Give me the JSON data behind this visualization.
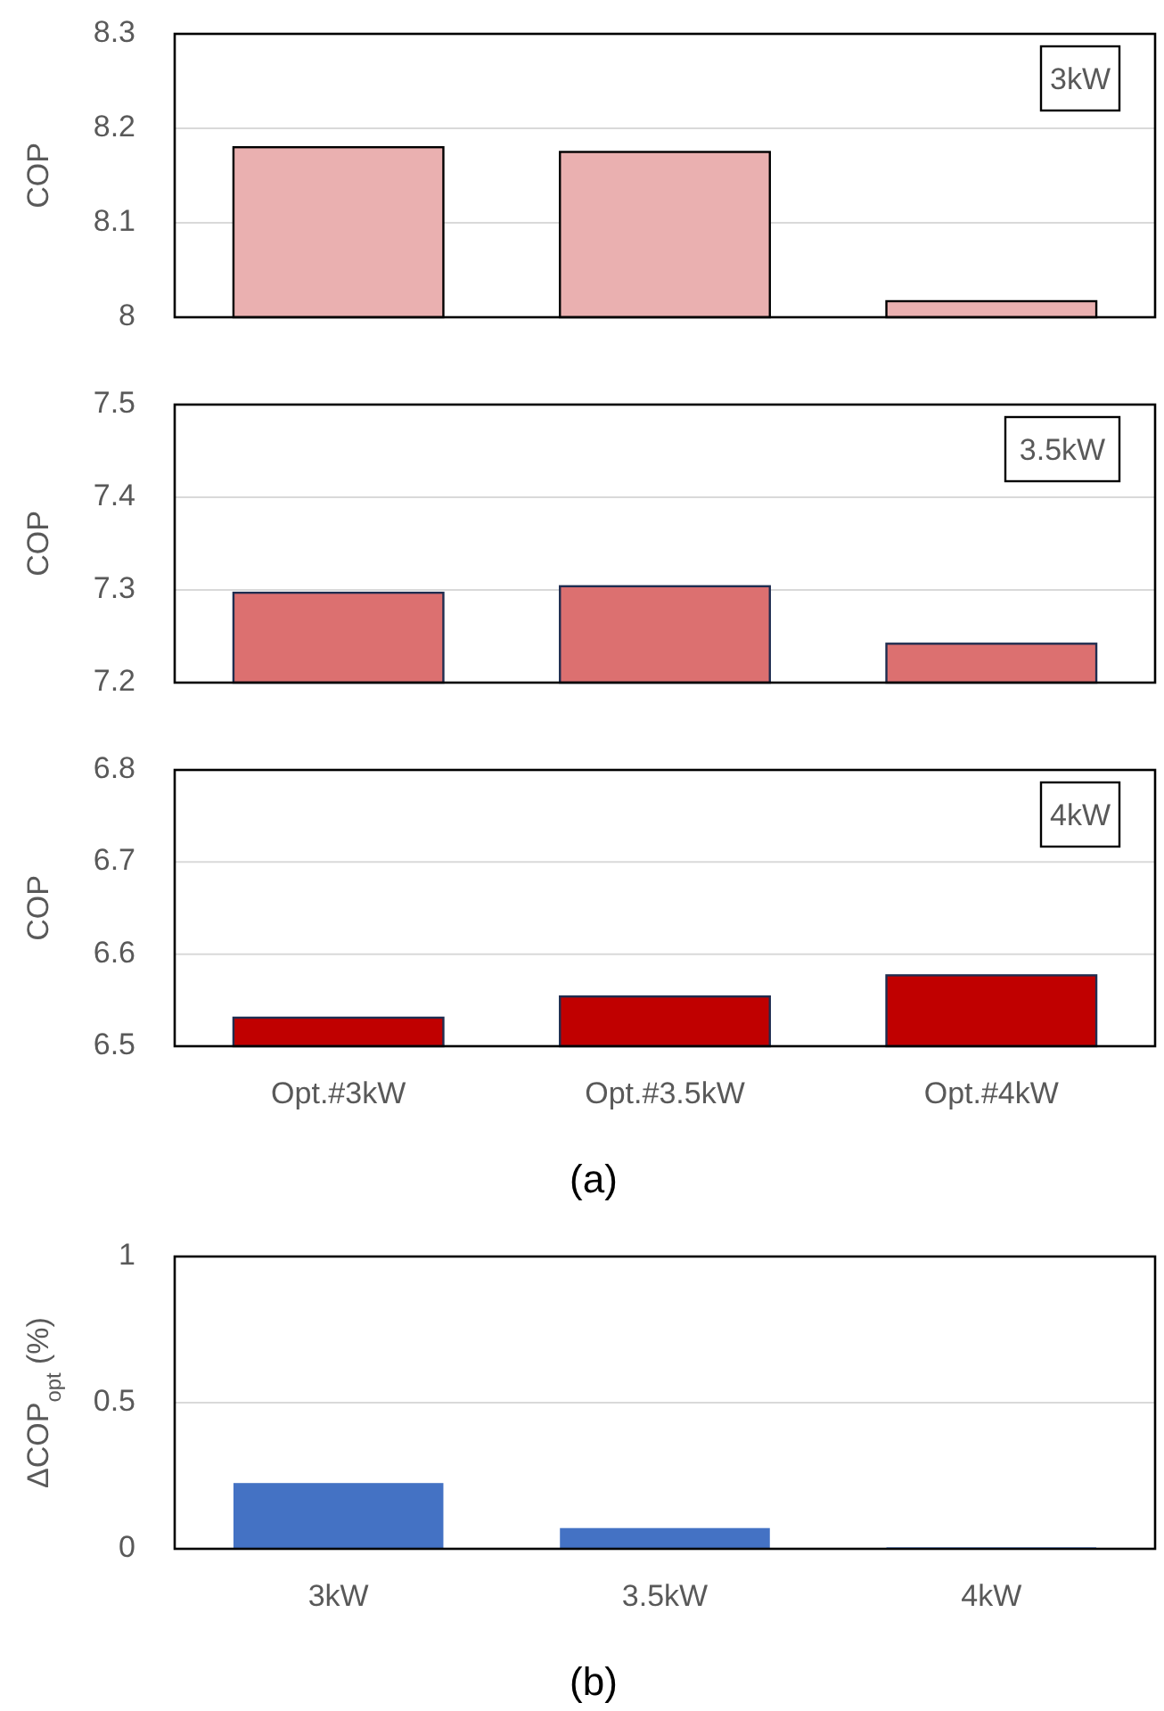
{
  "chart_data": [
    {
      "type": "bar",
      "ylabel": "COP",
      "categories": [
        null,
        null,
        null
      ],
      "values": [
        8.18,
        8.175,
        8.017
      ],
      "color": "#eab0b0",
      "ylim": [
        8,
        8.3
      ],
      "yticks": [
        8,
        8.1,
        8.2,
        8.3
      ],
      "grid": "y",
      "annotations": [
        "3kW"
      ]
    },
    {
      "type": "bar",
      "ylabel": "COP",
      "categories": [
        null,
        null,
        null
      ],
      "values": [
        7.297,
        7.304,
        7.242
      ],
      "color": "#dc7070",
      "ylim": [
        7.2,
        7.5
      ],
      "yticks": [
        7.2,
        7.3,
        7.4,
        7.5
      ],
      "grid": "y",
      "annotations": [
        "3.5kW"
      ]
    },
    {
      "type": "bar",
      "ylabel": "COP",
      "categories": [
        "Opt.#3kW",
        "Opt.#3.5kW",
        "Opt.#4kW"
      ],
      "values": [
        6.531,
        6.554,
        6.577
      ],
      "color": "#c00000",
      "ylim": [
        6.5,
        6.8
      ],
      "yticks": [
        6.5,
        6.6,
        6.7,
        6.8
      ],
      "grid": "y",
      "annotations": [
        "4kW",
        "(a)"
      ]
    },
    {
      "type": "bar",
      "ylabel": "ΔCOP$_{opt}$ (%)",
      "categories": [
        "3kW",
        "3.5kW",
        "4kW"
      ],
      "values": [
        0.225,
        0.071,
        0.005
      ],
      "color": "#4472c4",
      "ylim": [
        0,
        1
      ],
      "yticks": [
        0,
        0.5,
        1
      ],
      "grid": "y",
      "annotations": [
        "(b)"
      ]
    }
  ]
}
